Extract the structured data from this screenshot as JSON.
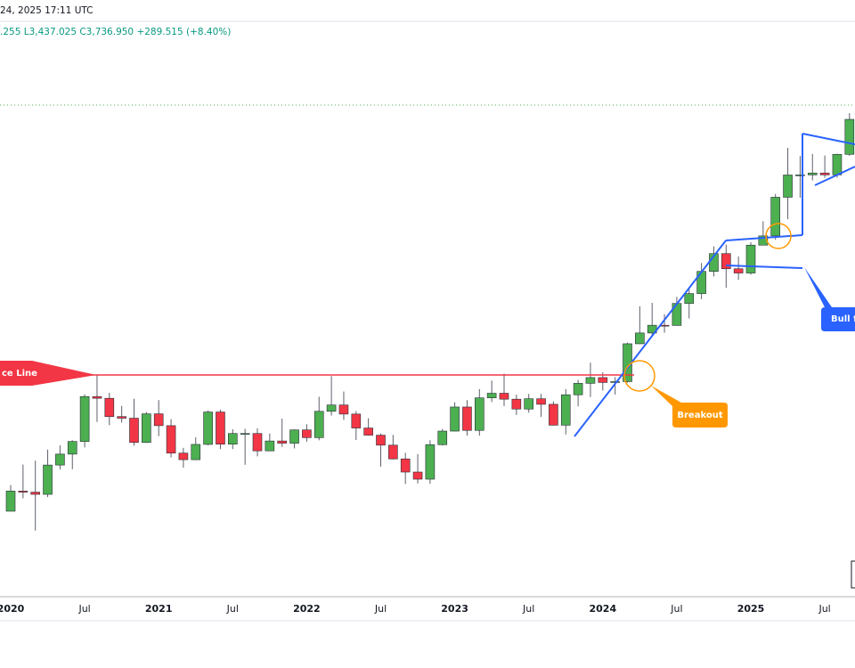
{
  "chart_data": {
    "type": "candlestick",
    "subtitle": "24, 2025 17:11 UTC",
    "ohlc_text": ".255 L3,437.025 C3,736.950 +289.515 (+8.40%)",
    "annotations": [
      "ce Line",
      "Breakout",
      "Bull fl"
    ],
    "log_scale": true,
    "ylim": [
      1246,
      4918
    ],
    "up_color": "#4caf50",
    "down_color": "#f23645",
    "categories": [
      "2020",
      null,
      null,
      null,
      null,
      null,
      "Jul",
      null,
      null,
      null,
      null,
      null,
      "2021",
      null,
      null,
      null,
      null,
      null,
      "Jul",
      null,
      null,
      null,
      null,
      null,
      "2022",
      null,
      null,
      null,
      null,
      null,
      "Jul",
      null,
      null,
      null,
      null,
      null,
      "2023",
      null,
      null,
      null,
      null,
      null,
      "Jul",
      null,
      null,
      null,
      null,
      null,
      "2024",
      null,
      null,
      null,
      null,
      null,
      "Jul",
      null,
      null,
      null,
      null,
      null,
      "2025",
      null,
      null,
      null,
      null,
      null,
      "Jul",
      null,
      null
    ],
    "open": [
      1517,
      1589,
      1585,
      1577,
      1687,
      1730,
      1781,
      1975,
      1967,
      1886,
      1879,
      1777,
      1898,
      1847,
      1734,
      1708,
      1769,
      1906,
      1770,
      1814,
      1814,
      1743,
      1783,
      1774,
      1829,
      1797,
      1909,
      1937,
      1897,
      1837,
      1807,
      1766,
      1711,
      1660,
      1633,
      1768,
      1824,
      1928,
      1827,
      1969,
      1990,
      1963,
      1919,
      1965,
      1940,
      1849,
      1983,
      2036,
      2063,
      2040,
      2044,
      2230,
      2286,
      2327,
      2326,
      2447,
      2503,
      2634,
      2744,
      2650,
      2624,
      2798,
      2858,
      3124,
      3288,
      3289,
      3303,
      3289,
      3448
    ],
    "high": [
      1611,
      1689,
      1704,
      1748,
      1765,
      1786,
      1985,
      2075,
      1992,
      1933,
      1965,
      1906,
      1959,
      1875,
      1755,
      1798,
      1913,
      1916,
      1832,
      1834,
      1836,
      1814,
      1877,
      1831,
      1853,
      1974,
      2070,
      1998,
      1910,
      1879,
      1814,
      1808,
      1735,
      1730,
      1786,
      1833,
      1949,
      1959,
      2009,
      2049,
      2082,
      1984,
      1987,
      1987,
      1953,
      2009,
      2052,
      2135,
      2088,
      2065,
      2236,
      2431,
      2450,
      2387,
      2484,
      2531,
      2685,
      2790,
      2801,
      2726,
      2817,
      2956,
      3148,
      3500,
      3435,
      3451,
      3439,
      3453,
      3791
    ],
    "low": [
      1517,
      1563,
      1451,
      1567,
      1670,
      1671,
      1757,
      1863,
      1849,
      1860,
      1764,
      1775,
      1803,
      1717,
      1677,
      1706,
      1765,
      1750,
      1750,
      1688,
      1721,
      1746,
      1759,
      1753,
      1780,
      1786,
      1890,
      1872,
      1787,
      1805,
      1681,
      1709,
      1615,
      1617,
      1616,
      1765,
      1823,
      1805,
      1805,
      1950,
      1932,
      1893,
      1903,
      1885,
      1848,
      1810,
      1931,
      1973,
      2002,
      1984,
      2039,
      2228,
      2277,
      2287,
      2353,
      2364,
      2471,
      2604,
      2537,
      2583,
      2614,
      2832,
      2833,
      2970,
      3121,
      3247,
      3268,
      3268,
      3437
    ],
    "close": [
      1589,
      1585,
      1577,
      1687,
      1730,
      1781,
      1975,
      1967,
      1886,
      1879,
      1777,
      1898,
      1847,
      1734,
      1708,
      1769,
      1906,
      1770,
      1814,
      1814,
      1743,
      1783,
      1774,
      1829,
      1797,
      1909,
      1937,
      1897,
      1837,
      1807,
      1766,
      1711,
      1660,
      1633,
      1768,
      1824,
      1928,
      1827,
      1969,
      1990,
      1963,
      1919,
      1965,
      1940,
      1849,
      1983,
      2036,
      2063,
      2040,
      2044,
      2230,
      2286,
      2327,
      2326,
      2447,
      2503,
      2634,
      2744,
      2650,
      2624,
      2798,
      2858,
      3124,
      3288,
      3289,
      3303,
      3289,
      3448,
      3737
    ]
  }
}
